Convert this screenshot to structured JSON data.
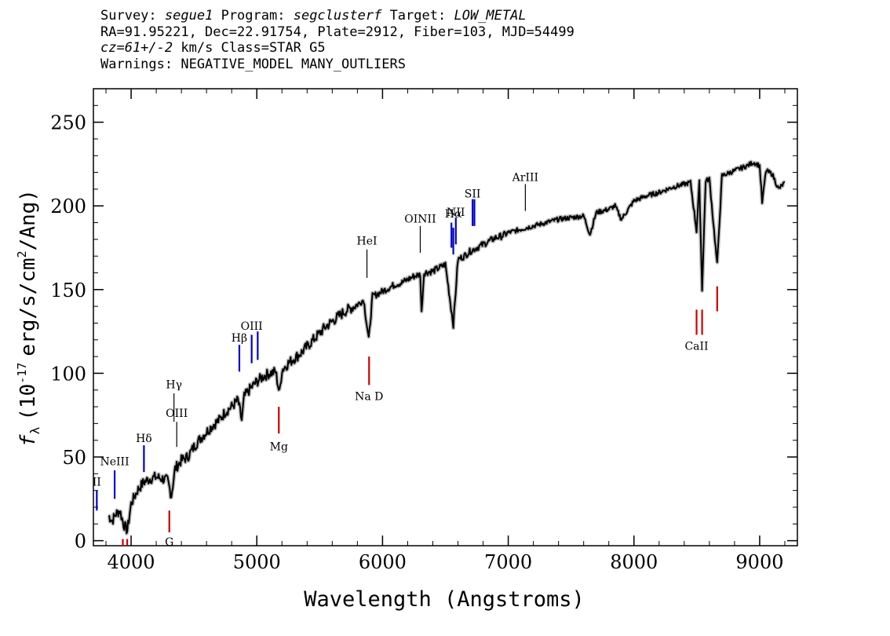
{
  "header": {
    "survey_label": "Survey:",
    "survey": "segue1",
    "program_label": "Program:",
    "program": "segclusterf",
    "target_label": "Target:",
    "target": "LOW_METAL",
    "line2": "RA=91.95221, Dec=22.91754, Plate=2912, Fiber=103, MJD=54499",
    "cz": "cz=61+/-2",
    "cz_rest": " km/s Class=STAR G5",
    "warnings": "Warnings: NEGATIVE_MODEL MANY_OUTLIERS"
  },
  "chart_data": {
    "type": "line",
    "xlabel": "Wavelength (Angstroms)",
    "ylabel_prefix": "f",
    "ylabel_sub": "λ",
    "ylabel_unit_a": "(10",
    "ylabel_exp1": "-17",
    "ylabel_unit_b": "erg/s/cm",
    "ylabel_exp2": "2",
    "ylabel_unit_c": "/Ang)",
    "xlim": [
      3700,
      9300
    ],
    "ylim": [
      -3,
      270
    ],
    "x_ticks": [
      4000,
      5000,
      6000,
      7000,
      8000,
      9000
    ],
    "y_ticks": [
      0,
      50,
      100,
      150,
      200,
      250
    ],
    "x_minor_step": 200,
    "y_minor_step": 10,
    "grid": false,
    "series": [
      {
        "color": "#000000",
        "error_color": "#bbbbbb",
        "points": [
          [
            3820,
            15
          ],
          [
            3850,
            12
          ],
          [
            3880,
            16
          ],
          [
            3910,
            18
          ],
          [
            3940,
            10
          ],
          [
            3970,
            6
          ],
          [
            4000,
            22
          ],
          [
            4050,
            30
          ],
          [
            4100,
            35
          ],
          [
            4150,
            37
          ],
          [
            4200,
            38
          ],
          [
            4250,
            37
          ],
          [
            4290,
            36
          ],
          [
            4320,
            27
          ],
          [
            4350,
            43
          ],
          [
            4400,
            48
          ],
          [
            4450,
            50
          ],
          [
            4500,
            56
          ],
          [
            4550,
            61
          ],
          [
            4600,
            65
          ],
          [
            4650,
            69
          ],
          [
            4700,
            72
          ],
          [
            4750,
            77
          ],
          [
            4800,
            80
          ],
          [
            4850,
            84
          ],
          [
            4880,
            72
          ],
          [
            4900,
            86
          ],
          [
            4950,
            91
          ],
          [
            5000,
            95
          ],
          [
            5050,
            98
          ],
          [
            5100,
            100
          ],
          [
            5150,
            101
          ],
          [
            5180,
            88
          ],
          [
            5200,
            102
          ],
          [
            5250,
            106
          ],
          [
            5300,
            109
          ],
          [
            5350,
            112
          ],
          [
            5400,
            116
          ],
          [
            5450,
            120
          ],
          [
            5500,
            124
          ],
          [
            5550,
            128
          ],
          [
            5600,
            131
          ],
          [
            5650,
            134
          ],
          [
            5700,
            137
          ],
          [
            5750,
            139
          ],
          [
            5800,
            141
          ],
          [
            5850,
            144
          ],
          [
            5890,
            120
          ],
          [
            5920,
            146
          ],
          [
            5950,
            147
          ],
          [
            6000,
            149
          ],
          [
            6050,
            151
          ],
          [
            6100,
            153
          ],
          [
            6150,
            154
          ],
          [
            6200,
            156
          ],
          [
            6250,
            158
          ],
          [
            6300,
            159
          ],
          [
            6310,
            136
          ],
          [
            6330,
            160
          ],
          [
            6400,
            161
          ],
          [
            6450,
            163
          ],
          [
            6500,
            165
          ],
          [
            6563,
            129
          ],
          [
            6600,
            168
          ],
          [
            6650,
            170
          ],
          [
            6700,
            173
          ],
          [
            6750,
            175
          ],
          [
            6800,
            177
          ],
          [
            6850,
            179
          ],
          [
            6900,
            181
          ],
          [
            6950,
            182
          ],
          [
            7000,
            184
          ],
          [
            7100,
            186
          ],
          [
            7200,
            188
          ],
          [
            7300,
            190
          ],
          [
            7400,
            192
          ],
          [
            7500,
            193
          ],
          [
            7600,
            194
          ],
          [
            7650,
            183
          ],
          [
            7700,
            196
          ],
          [
            7800,
            198
          ],
          [
            7850,
            200
          ],
          [
            7900,
            192
          ],
          [
            8000,
            203
          ],
          [
            8100,
            206
          ],
          [
            8200,
            208
          ],
          [
            8300,
            211
          ],
          [
            8400,
            213
          ],
          [
            8450,
            214
          ],
          [
            8498,
            185
          ],
          [
            8520,
            214
          ],
          [
            8542,
            150
          ],
          [
            8570,
            215
          ],
          [
            8600,
            216
          ],
          [
            8662,
            165
          ],
          [
            8700,
            218
          ],
          [
            8800,
            221
          ],
          [
            8900,
            224
          ],
          [
            8950,
            226
          ],
          [
            9000,
            224
          ],
          [
            9020,
            202
          ],
          [
            9050,
            221
          ],
          [
            9100,
            219
          ],
          [
            9150,
            210
          ],
          [
            9200,
            214
          ]
        ]
      }
    ],
    "line_markers": [
      {
        "label": "NeIII",
        "x": 3869,
        "y1": 25,
        "y2": 42,
        "color": "#0000cc",
        "label_y": 45
      },
      {
        "label": "Hδ",
        "x": 4102,
        "y1": 41,
        "y2": 57,
        "color": "#0000cc",
        "label_y": 59
      },
      {
        "label": "Hγ",
        "x": 4341,
        "y1": 71,
        "y2": 88,
        "color": "#000000",
        "label_y": 91
      },
      {
        "label": "OIII",
        "x": 4363,
        "y1": 56,
        "y2": 71,
        "color": "#000000",
        "label_y": 74
      },
      {
        "label": "Hβ",
        "x": 4861,
        "y1": 101,
        "y2": 117,
        "color": "#0000cc",
        "label_y": 119
      },
      {
        "label": "OIII",
        "x": 4959,
        "y1": 106,
        "y2": 123,
        "color": "#0000cc",
        "label_y": 126
      },
      {
        "label": "",
        "x": 5007,
        "y1": 108,
        "y2": 125,
        "color": "#0000cc",
        "label_y": 126
      },
      {
        "label": "HeI",
        "x": 5876,
        "y1": 157,
        "y2": 174,
        "color": "#000000",
        "label_y": 177
      },
      {
        "label": "OINII",
        "x": 6300,
        "y1": 172,
        "y2": 188,
        "color": "#000000",
        "label_y": 190
      },
      {
        "label": "Hα",
        "x": 6563,
        "y1": 171,
        "y2": 187,
        "color": "#0000cc",
        "label_y": 193
      },
      {
        "label": "",
        "x": 6548,
        "y1": 175,
        "y2": 190,
        "color": "#0000cc",
        "label_y": 193
      },
      {
        "label": "NII",
        "x": 6583,
        "y1": 177,
        "y2": 193,
        "color": "#0000cc",
        "label_y": 194
      },
      {
        "label": "SII",
        "x": 6716,
        "y1": 188,
        "y2": 204,
        "color": "#0000cc",
        "label_y": 205
      },
      {
        "label": "",
        "x": 6731,
        "y1": 188,
        "y2": 204,
        "color": "#0000cc",
        "label_y": 205
      },
      {
        "label": "ArIII",
        "x": 7136,
        "y1": 197,
        "y2": 213,
        "color": "#000000",
        "label_y": 215
      },
      {
        "label": "II",
        "x": 3727,
        "y1": 18,
        "y2": 30,
        "color": "#0000cc",
        "label_y": 33
      }
    ],
    "absorption_markers": [
      {
        "label": "G",
        "x": 4304,
        "y1": 5,
        "y2": 18,
        "color": "#cc0000",
        "label_y": -3
      },
      {
        "label": "Mg",
        "x": 5175,
        "y1": 64,
        "y2": 80,
        "color": "#cc0000",
        "label_y": 54
      },
      {
        "label": "Na D",
        "x": 5893,
        "y1": 93,
        "y2": 110,
        "color": "#cc0000",
        "label_y": 84
      },
      {
        "label": "CaII",
        "x": 8498,
        "y1": 123,
        "y2": 138,
        "color": "#cc0000",
        "label_y": 114
      },
      {
        "label": "",
        "x": 8542,
        "y1": 123,
        "y2": 138,
        "color": "#cc0000",
        "label_y": 114
      },
      {
        "label": "",
        "x": 8662,
        "y1": 137,
        "y2": 152,
        "color": "#cc0000",
        "label_y": 114
      },
      {
        "label": "",
        "x": 3934,
        "y1": -3,
        "y2": 1,
        "color": "#cc0000",
        "label_y": -3
      },
      {
        "label": "",
        "x": 3969,
        "y1": -3,
        "y2": 1,
        "color": "#cc0000",
        "label_y": -3
      }
    ]
  }
}
